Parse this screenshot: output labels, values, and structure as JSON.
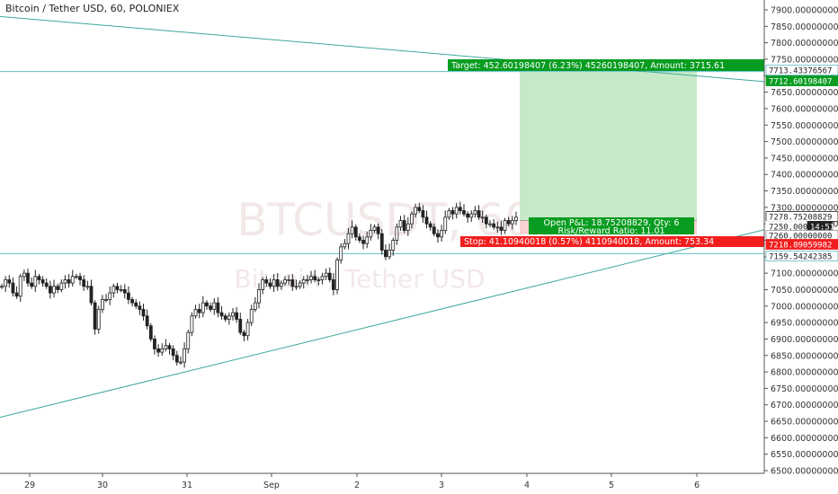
{
  "header": {
    "title": "Bitcoin / Tether USD, 60, POLONIEX"
  },
  "watermark": {
    "symbol": "BTCUSDT, 60",
    "name": "Bitcoin / Tether USD"
  },
  "chart_data": {
    "type": "candlestick",
    "ylim": [
      6480,
      7920
    ],
    "y_ticks": [
      "7900.00000000",
      "7850.00000000",
      "7800.00000000",
      "7750.00000000",
      "7700.00000000",
      "7650.00000000",
      "7600.00000000",
      "7550.00000000",
      "7500.00000000",
      "7450.00000000",
      "7400.00000000",
      "7350.00000000",
      "7300.00000000",
      "7250.00000000",
      "7200.00000000",
      "7150.00000000",
      "7100.00000000",
      "7050.00000000",
      "7000.00000000",
      "6950.00000000",
      "6900.00000000",
      "6850.00000000",
      "6800.00000000",
      "6750.00000000",
      "6700.00000000",
      "6650.00000000",
      "6600.00000000",
      "6550.00000000",
      "6500.00000000"
    ],
    "x_ticks": [
      "29",
      "30",
      "31",
      "Sep",
      "2",
      "3",
      "4",
      "5",
      "6"
    ],
    "candles_close": [
      7060,
      7080,
      7070,
      7040,
      7030,
      7090,
      7100,
      7070,
      7060,
      7090,
      7080,
      7070,
      7060,
      7040,
      7060,
      7050,
      7070,
      7080,
      7070,
      7090,
      7090,
      7080,
      7060,
      7060,
      7010,
      6930,
      6990,
      7020,
      7020,
      7040,
      7060,
      7050,
      7050,
      7040,
      7020,
      7010,
      7000,
      6990,
      6970,
      6940,
      6900,
      6870,
      6860,
      6870,
      6880,
      6870,
      6850,
      6830,
      6830,
      6870,
      6920,
      6970,
      6990,
      6980,
      7010,
      7000,
      6990,
      7010,
      6980,
      6970,
      6960,
      6970,
      6980,
      6960,
      6920,
      6910,
      6950,
      6990,
      7010,
      7050,
      7080,
      7070,
      7060,
      7080,
      7060,
      7070,
      7080,
      7080,
      7060,
      7060,
      7070,
      7080,
      7080,
      7090,
      7080,
      7080,
      7090,
      7100,
      7080,
      7050,
      7140,
      7180,
      7190,
      7220,
      7240,
      7210,
      7200,
      7190,
      7210,
      7230,
      7240,
      7220,
      7170,
      7150,
      7170,
      7200,
      7240,
      7260,
      7230,
      7250,
      7280,
      7300,
      7290,
      7270,
      7250,
      7240,
      7220,
      7210,
      7230,
      7270,
      7290,
      7280,
      7300,
      7290,
      7280,
      7270,
      7280,
      7290,
      7270,
      7270,
      7250,
      7250,
      7240,
      7240,
      7230,
      7260,
      7250,
      7260,
      7270
    ],
    "lines": {
      "resistance_trend": {
        "from": [
          0,
          7880
        ],
        "to": [
          1,
          7682
        ]
      },
      "support_trend": {
        "from": [
          0,
          6662
        ],
        "to": [
          1,
          7232
        ]
      },
      "upper_horizontal": 7712.6,
      "lower_horizontal": 7159.54
    },
    "position": {
      "entry": 7260.0,
      "target": 7712.60198407,
      "stop": 7218.89059982
    },
    "labels": {
      "target": "Target: 452.60198407 (6.23%) 45260198407, Amount: 3715.61",
      "pnl": "Open P&L: 18.75208829, Qty: 6",
      "rr": "Risk/Reward Ratio: 11.01",
      "stop": "Stop: 41.10940018 (0.57%) 4110940018, Amount: 753.34"
    },
    "price_tags": [
      {
        "text": "7713.43376567",
        "fill": "#ffffff",
        "color": "#222222",
        "border": "#5db8c5"
      },
      {
        "text": "7712.60198407",
        "fill": "#089c20",
        "color": "#ffffff"
      },
      {
        "text": "7278.75208829",
        "fill": "#ffffff",
        "color": "#222222",
        "border": "#222222"
      },
      {
        "text": "7250.00000000",
        "fill": "#ffffff",
        "color": "#222222"
      },
      {
        "text": "14:51",
        "fill": "#222222",
        "color": "#ffffff"
      },
      {
        "text": "7260.00000000",
        "fill": "#ffffff",
        "color": "#222222",
        "border": "#999999"
      },
      {
        "text": "7218.89059982",
        "fill": "#f21e1e",
        "color": "#ffffff"
      },
      {
        "text": "7159.54242385",
        "fill": "#ffffff",
        "color": "#222222",
        "border": "#5db8c5"
      }
    ],
    "colors": {
      "trendline": "#3ea89c",
      "horizontal": "#5fc0c9",
      "target_zone": "#c8e9c8",
      "stop_zone": "#f8d2d2",
      "green_label": "#089c20",
      "red_label": "#f21e1e",
      "candle": "#222222"
    }
  }
}
